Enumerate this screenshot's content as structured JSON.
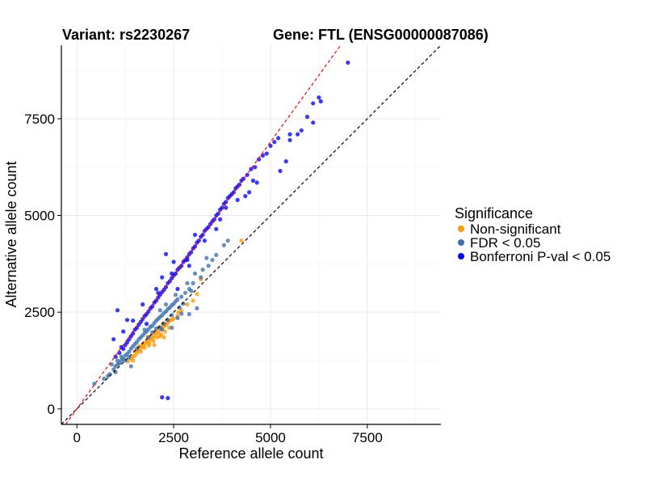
{
  "chart_data": {
    "type": "scatter",
    "title_left": "Variant: rs2230267",
    "title_right": "Gene: FTL (ENSG00000087086)",
    "xlabel": "Reference allele count",
    "ylabel": "Alternative allele count",
    "xlim": [
      -400,
      9400
    ],
    "ylim": [
      -400,
      9400
    ],
    "x_ticks": [
      0,
      2500,
      5000,
      7500
    ],
    "y_ticks": [
      0,
      2500,
      5000,
      7500
    ],
    "x_tick_labels": [
      "0",
      "2500",
      "5000",
      "7500"
    ],
    "y_tick_labels": [
      "0",
      "2500",
      "5000",
      "7500"
    ],
    "grid": true,
    "legend": {
      "title": "Significance",
      "position": "right",
      "entries": [
        {
          "label": "Non-significant",
          "color": "#FF9900"
        },
        {
          "label": "FDR < 0.05",
          "color": "#3A6FB0"
        },
        {
          "label": "Bonferroni P-val < 0.05",
          "color": "#0000FF"
        }
      ]
    },
    "reference_lines": [
      {
        "type": "identity",
        "slope": 1,
        "intercept": 0,
        "color": "#000000",
        "style": "dashed"
      },
      {
        "type": "fit",
        "slope": 1.38,
        "intercept": 0,
        "color": "#FF0000",
        "style": "dashed"
      }
    ],
    "series": [
      {
        "name": "Non-significant",
        "color": "#FF9900",
        "points": [
          [
            1320,
            1230
          ],
          [
            1400,
            1300
          ],
          [
            1450,
            1360
          ],
          [
            1500,
            1380
          ],
          [
            1550,
            1450
          ],
          [
            1580,
            1520
          ],
          [
            1620,
            1540
          ],
          [
            1680,
            1600
          ],
          [
            1700,
            1630
          ],
          [
            1750,
            1680
          ],
          [
            1800,
            1720
          ],
          [
            1850,
            1760
          ],
          [
            1900,
            1800
          ],
          [
            1950,
            1830
          ],
          [
            2000,
            1880
          ],
          [
            2050,
            1950
          ],
          [
            2100,
            1980
          ],
          [
            2150,
            2050
          ],
          [
            2200,
            2100
          ],
          [
            2250,
            2130
          ],
          [
            2300,
            2180
          ],
          [
            2350,
            2230
          ],
          [
            2400,
            2280
          ],
          [
            2450,
            2300
          ],
          [
            1600,
            1620
          ],
          [
            1720,
            1700
          ],
          [
            1830,
            1860
          ],
          [
            1930,
            1900
          ],
          [
            2030,
            1990
          ],
          [
            2130,
            2120
          ],
          [
            2230,
            2210
          ],
          [
            2330,
            2300
          ],
          [
            2500,
            2330
          ],
          [
            2600,
            2400
          ],
          [
            1750,
            1580
          ],
          [
            1870,
            1700
          ],
          [
            1980,
            1760
          ],
          [
            2080,
            1850
          ],
          [
            2180,
            1920
          ],
          [
            2280,
            2000
          ],
          [
            2700,
            2550
          ],
          [
            3000,
            2800
          ],
          [
            3100,
            2970
          ],
          [
            3200,
            3350
          ],
          [
            4250,
            4350
          ],
          [
            1500,
            1500
          ],
          [
            1650,
            1480
          ],
          [
            2150,
            1880
          ],
          [
            2380,
            2100
          ],
          [
            2000,
            1650
          ],
          [
            2250,
            1850
          ],
          [
            1860,
            1640
          ],
          [
            2620,
            2500
          ],
          [
            2850,
            2700
          ],
          [
            1450,
            1250
          ]
        ]
      },
      {
        "name": "FDR < 0.05",
        "color": "#3A6FB0",
        "points": [
          [
            450,
            650
          ],
          [
            700,
            780
          ],
          [
            850,
            900
          ],
          [
            950,
            1020
          ],
          [
            1000,
            1100
          ],
          [
            1050,
            1150
          ],
          [
            1100,
            1180
          ],
          [
            1150,
            1250
          ],
          [
            1200,
            1300
          ],
          [
            1250,
            1380
          ],
          [
            1300,
            1420
          ],
          [
            1350,
            1480
          ],
          [
            1400,
            1560
          ],
          [
            1450,
            1620
          ],
          [
            1500,
            1680
          ],
          [
            1550,
            1730
          ],
          [
            1600,
            1800
          ],
          [
            1650,
            1850
          ],
          [
            1700,
            1900
          ],
          [
            1750,
            1960
          ],
          [
            1800,
            2000
          ],
          [
            1850,
            2060
          ],
          [
            1900,
            2120
          ],
          [
            1950,
            2150
          ],
          [
            2000,
            2220
          ],
          [
            2050,
            2280
          ],
          [
            2100,
            2330
          ],
          [
            2150,
            2380
          ],
          [
            2200,
            2420
          ],
          [
            2250,
            2480
          ],
          [
            2300,
            2520
          ],
          [
            2350,
            2580
          ],
          [
            2400,
            2620
          ],
          [
            2450,
            2680
          ],
          [
            2500,
            2720
          ],
          [
            2550,
            2780
          ],
          [
            2600,
            2830
          ],
          [
            2700,
            2900
          ],
          [
            2800,
            3000
          ],
          [
            2900,
            3100
          ],
          [
            3000,
            3250
          ],
          [
            3200,
            3400
          ],
          [
            3400,
            3700
          ],
          [
            3600,
            3980
          ],
          [
            3800,
            4230
          ],
          [
            3250,
            3600
          ],
          [
            3900,
            4350
          ],
          [
            1550,
            1560
          ],
          [
            1850,
            1850
          ],
          [
            2150,
            2100
          ],
          [
            2250,
            2200
          ],
          [
            2350,
            2300
          ],
          [
            2450,
            2420
          ],
          [
            1950,
            1980
          ],
          [
            2050,
            2080
          ],
          [
            2650,
            2620
          ],
          [
            2750,
            2720
          ],
          [
            2950,
            3050
          ],
          [
            1250,
            1250
          ],
          [
            1350,
            1330
          ],
          [
            2200,
            2050
          ],
          [
            2450,
            2100
          ],
          [
            2600,
            2350
          ],
          [
            2700,
            2460
          ],
          [
            2900,
            2450
          ],
          [
            3100,
            2600
          ],
          [
            1400,
            1100
          ],
          [
            900,
            1150
          ],
          [
            800,
            850
          ],
          [
            1000,
            950
          ],
          [
            3350,
            3900
          ],
          [
            3050,
            3500
          ],
          [
            2550,
            2950
          ],
          [
            2850,
            3250
          ],
          [
            3500,
            3850
          ],
          [
            1150,
            1350
          ],
          [
            1050,
            1250
          ],
          [
            2300,
            2700
          ],
          [
            2150,
            2550
          ],
          [
            1750,
            2050
          ]
        ]
      },
      {
        "name": "Bonferroni P-val < 0.05",
        "color": "#0000FF",
        "points": [
          [
            1000,
            1350
          ],
          [
            1100,
            1450
          ],
          [
            1150,
            1600
          ],
          [
            1200,
            1550
          ],
          [
            1250,
            1650
          ],
          [
            1300,
            1720
          ],
          [
            1350,
            1800
          ],
          [
            1400,
            1880
          ],
          [
            1450,
            1950
          ],
          [
            1500,
            2050
          ],
          [
            1550,
            2100
          ],
          [
            1600,
            2180
          ],
          [
            1650,
            2250
          ],
          [
            1700,
            2320
          ],
          [
            1750,
            2400
          ],
          [
            1800,
            2450
          ],
          [
            1850,
            2520
          ],
          [
            1900,
            2600
          ],
          [
            1950,
            2650
          ],
          [
            2000,
            2750
          ],
          [
            2050,
            2800
          ],
          [
            2100,
            2880
          ],
          [
            2150,
            2950
          ],
          [
            2200,
            3020
          ],
          [
            2250,
            3080
          ],
          [
            2300,
            3150
          ],
          [
            2350,
            3250
          ],
          [
            2400,
            3300
          ],
          [
            2450,
            3380
          ],
          [
            2500,
            3450
          ],
          [
            2550,
            3500
          ],
          [
            2600,
            3600
          ],
          [
            2650,
            3650
          ],
          [
            2700,
            3700
          ],
          [
            2750,
            3800
          ],
          [
            2800,
            3850
          ],
          [
            2850,
            3920
          ],
          [
            2900,
            4000
          ],
          [
            2950,
            4050
          ],
          [
            3000,
            4150
          ],
          [
            3050,
            4200
          ],
          [
            3100,
            4300
          ],
          [
            3150,
            4350
          ],
          [
            3200,
            4450
          ],
          [
            3250,
            4500
          ],
          [
            3300,
            4600
          ],
          [
            3350,
            4650
          ],
          [
            3400,
            4700
          ],
          [
            3450,
            4780
          ],
          [
            3500,
            4850
          ],
          [
            3550,
            4900
          ],
          [
            3600,
            5000
          ],
          [
            3650,
            5050
          ],
          [
            3700,
            5150
          ],
          [
            3750,
            5200
          ],
          [
            3800,
            5300
          ],
          [
            3850,
            5350
          ],
          [
            3900,
            5450
          ],
          [
            3950,
            5500
          ],
          [
            4000,
            5550
          ],
          [
            4050,
            5600
          ],
          [
            4100,
            5700
          ],
          [
            4150,
            5750
          ],
          [
            4200,
            5800
          ],
          [
            4250,
            5900
          ],
          [
            4300,
            5950
          ],
          [
            4400,
            6050
          ],
          [
            4500,
            6200
          ],
          [
            4600,
            6250
          ],
          [
            4700,
            6450
          ],
          [
            4800,
            6550
          ],
          [
            4900,
            6600
          ],
          [
            5000,
            6800
          ],
          [
            5100,
            6900
          ],
          [
            5200,
            7000
          ],
          [
            4550,
            5900
          ],
          [
            4350,
            5500
          ],
          [
            4650,
            5850
          ],
          [
            3300,
            4350
          ],
          [
            3600,
            4650
          ],
          [
            2100,
            3000
          ],
          [
            2600,
            3100
          ],
          [
            1800,
            2200
          ],
          [
            2900,
            3700
          ],
          [
            5500,
            6950
          ],
          [
            5800,
            7200
          ],
          [
            5950,
            7550
          ],
          [
            6300,
            7950
          ],
          [
            6250,
            8050
          ],
          [
            6100,
            7900
          ],
          [
            6100,
            7400
          ],
          [
            5500,
            7100
          ],
          [
            5700,
            7100
          ],
          [
            5400,
            6400
          ],
          [
            5250,
            6150
          ],
          [
            7000,
            8950
          ],
          [
            2200,
            300
          ],
          [
            2350,
            280
          ],
          [
            2850,
            3850
          ],
          [
            2450,
            3500
          ],
          [
            950,
            1800
          ],
          [
            1200,
            2000
          ],
          [
            1300,
            2300
          ],
          [
            1050,
            2550
          ],
          [
            1450,
            2280
          ],
          [
            1700,
            2700
          ],
          [
            2050,
            3100
          ],
          [
            2300,
            4000
          ],
          [
            2500,
            3800
          ],
          [
            2200,
            3400
          ],
          [
            3050,
            4500
          ],
          [
            3850,
            5200
          ],
          [
            4150,
            5400
          ],
          [
            4450,
            5600
          ],
          [
            3700,
            4900
          ]
        ]
      }
    ]
  }
}
